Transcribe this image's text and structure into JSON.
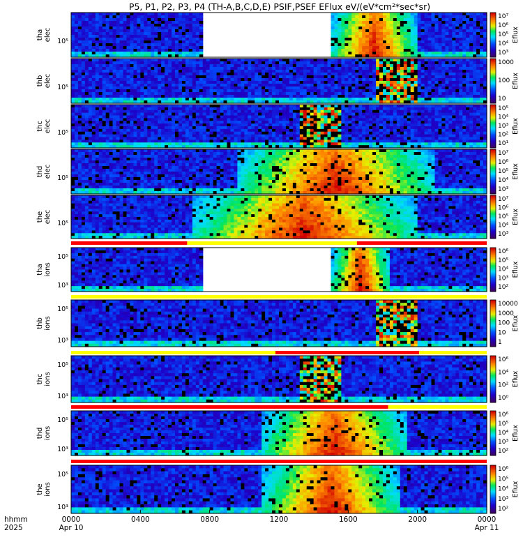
{
  "chart_data": {
    "type": "heatmap",
    "title": "P5, P1, P2, P3, P4 (TH-A,B,C,D,E) PSIF,PSEF EFlux eV/(eV*cm²*sec*sr)",
    "x_axis": {
      "ticks": [
        "0000",
        "0400",
        "0800",
        "1200",
        "1600",
        "2000",
        "0000"
      ],
      "dates": [
        "Apr 10",
        "Apr 11"
      ],
      "row_labels": [
        "hhmm",
        "2025"
      ],
      "range_hours": [
        0,
        24
      ]
    },
    "colormap": "rainbow (purple-blue-cyan-green-yellow-red)",
    "panels": [
      {
        "id": "tha-elec",
        "ylabel": [
          "tha",
          "elec"
        ],
        "ytick": "10⁵",
        "cbar_label": "Eflux",
        "cbar_ticks": [
          "10⁷",
          "10⁶",
          "10⁵",
          "10⁴",
          "10³"
        ],
        "data_gaps_hours": [
          [
            7.6,
            15.0
          ]
        ],
        "bright_hours": [
          15.0,
          20.0
        ]
      },
      {
        "id": "thb-elec",
        "ylabel": [
          "thb",
          "elec"
        ],
        "ytick": "10⁵",
        "cbar_label": "Eflux",
        "cbar_ticks": [
          "1000",
          "100",
          "10"
        ],
        "noise_block_hours": [
          17.6,
          20.0
        ]
      },
      {
        "id": "thc-elec",
        "ylabel": [
          "thc",
          "elec"
        ],
        "ytick": "10⁵",
        "cbar_label": "Eflux",
        "cbar_ticks": [
          "10⁵",
          "10⁴",
          "10³",
          "10²",
          "10¹"
        ],
        "noise_block_hours": [
          13.3,
          15.6
        ]
      },
      {
        "id": "thd-elec",
        "ylabel": [
          "thd",
          "elec"
        ],
        "ytick": "10⁵",
        "cbar_label": "Eflux",
        "cbar_ticks": [
          "10⁷",
          "10⁶",
          "10⁵",
          "10⁴",
          "10³"
        ],
        "bright_hours": [
          9.5,
          21.0
        ]
      },
      {
        "id": "the-elec",
        "ylabel": [
          "the",
          "elec"
        ],
        "ytick": "10⁵",
        "cbar_label": "Eflux",
        "cbar_ticks": [
          "10⁷",
          "10⁶",
          "10⁵",
          "10⁴",
          "10³"
        ],
        "bright_hours": [
          7.0,
          20.0
        ]
      },
      {
        "id": "tha-ions",
        "ylabel": [
          "tha",
          "ions"
        ],
        "ytick": [
          "10⁵",
          "10³"
        ],
        "cbar_label": "Eflux",
        "cbar_ticks": [
          "10⁶",
          "10⁵",
          "10⁴",
          "10³",
          "10²"
        ],
        "data_gaps_hours": [
          [
            7.6,
            15.0
          ]
        ],
        "bright_hours": [
          15.0,
          18.5
        ]
      },
      {
        "id": "thb-ions",
        "ylabel": [
          "thb",
          "ions"
        ],
        "ytick": [
          "10⁵",
          "10³"
        ],
        "cbar_label": "Eflux",
        "cbar_ticks": [
          "10000",
          "1000",
          "100",
          "10",
          "1"
        ],
        "noise_block_hours": [
          17.6,
          20.0
        ]
      },
      {
        "id": "thc-ions",
        "ylabel": [
          "thc",
          "ions"
        ],
        "ytick": [
          "10⁵",
          "10³"
        ],
        "cbar_label": "Eflux",
        "cbar_ticks": [
          "10⁶",
          "10⁴",
          "10²",
          "10⁰"
        ],
        "noise_block_hours": [
          13.3,
          15.6
        ]
      },
      {
        "id": "thd-ions",
        "ylabel": [
          "thd",
          "ions"
        ],
        "ytick": [
          "10⁵",
          "10³"
        ],
        "cbar_label": "Eflux",
        "cbar_ticks": [
          "10⁶",
          "10⁵",
          "10⁴",
          "10³",
          "10²"
        ],
        "bright_hours": [
          11.0,
          19.5
        ]
      },
      {
        "id": "the-ions",
        "ylabel": [
          "the",
          "ions"
        ],
        "ytick": [
          "10⁵",
          "10³"
        ],
        "cbar_label": "Eflux",
        "cbar_ticks": [
          "10⁶",
          "10⁵",
          "10⁴",
          "10³",
          "10²"
        ],
        "bright_hours": [
          11.0,
          19.0
        ]
      }
    ],
    "mode_bars": [
      {
        "after": "the-elec",
        "segments": [
          {
            "from": 0,
            "to": 6.7,
            "color": "#ff0000"
          },
          {
            "from": 6.7,
            "to": 16.5,
            "color": "#ffff00"
          },
          {
            "from": 16.5,
            "to": 24,
            "color": "#ff0000"
          }
        ]
      },
      {
        "after": "tha-ions",
        "segments": [
          {
            "from": 0,
            "to": 24,
            "color": "#ffff00"
          }
        ]
      },
      {
        "after": "thb-ions",
        "segments": [
          {
            "from": 0,
            "to": 11.8,
            "color": "#ffff00"
          },
          {
            "from": 11.8,
            "to": 20.1,
            "color": "#ff0000"
          },
          {
            "from": 20.1,
            "to": 24,
            "color": "#ffff00"
          }
        ]
      },
      {
        "after": "thc-ions",
        "segments": [
          {
            "from": 0,
            "to": 18.3,
            "color": "#ff0000"
          },
          {
            "from": 18.3,
            "to": 24,
            "color": "#ffff00"
          }
        ]
      },
      {
        "after": "thd-ions",
        "segments": [
          {
            "from": 0,
            "to": 24,
            "color": "#ff0000"
          }
        ]
      }
    ]
  }
}
